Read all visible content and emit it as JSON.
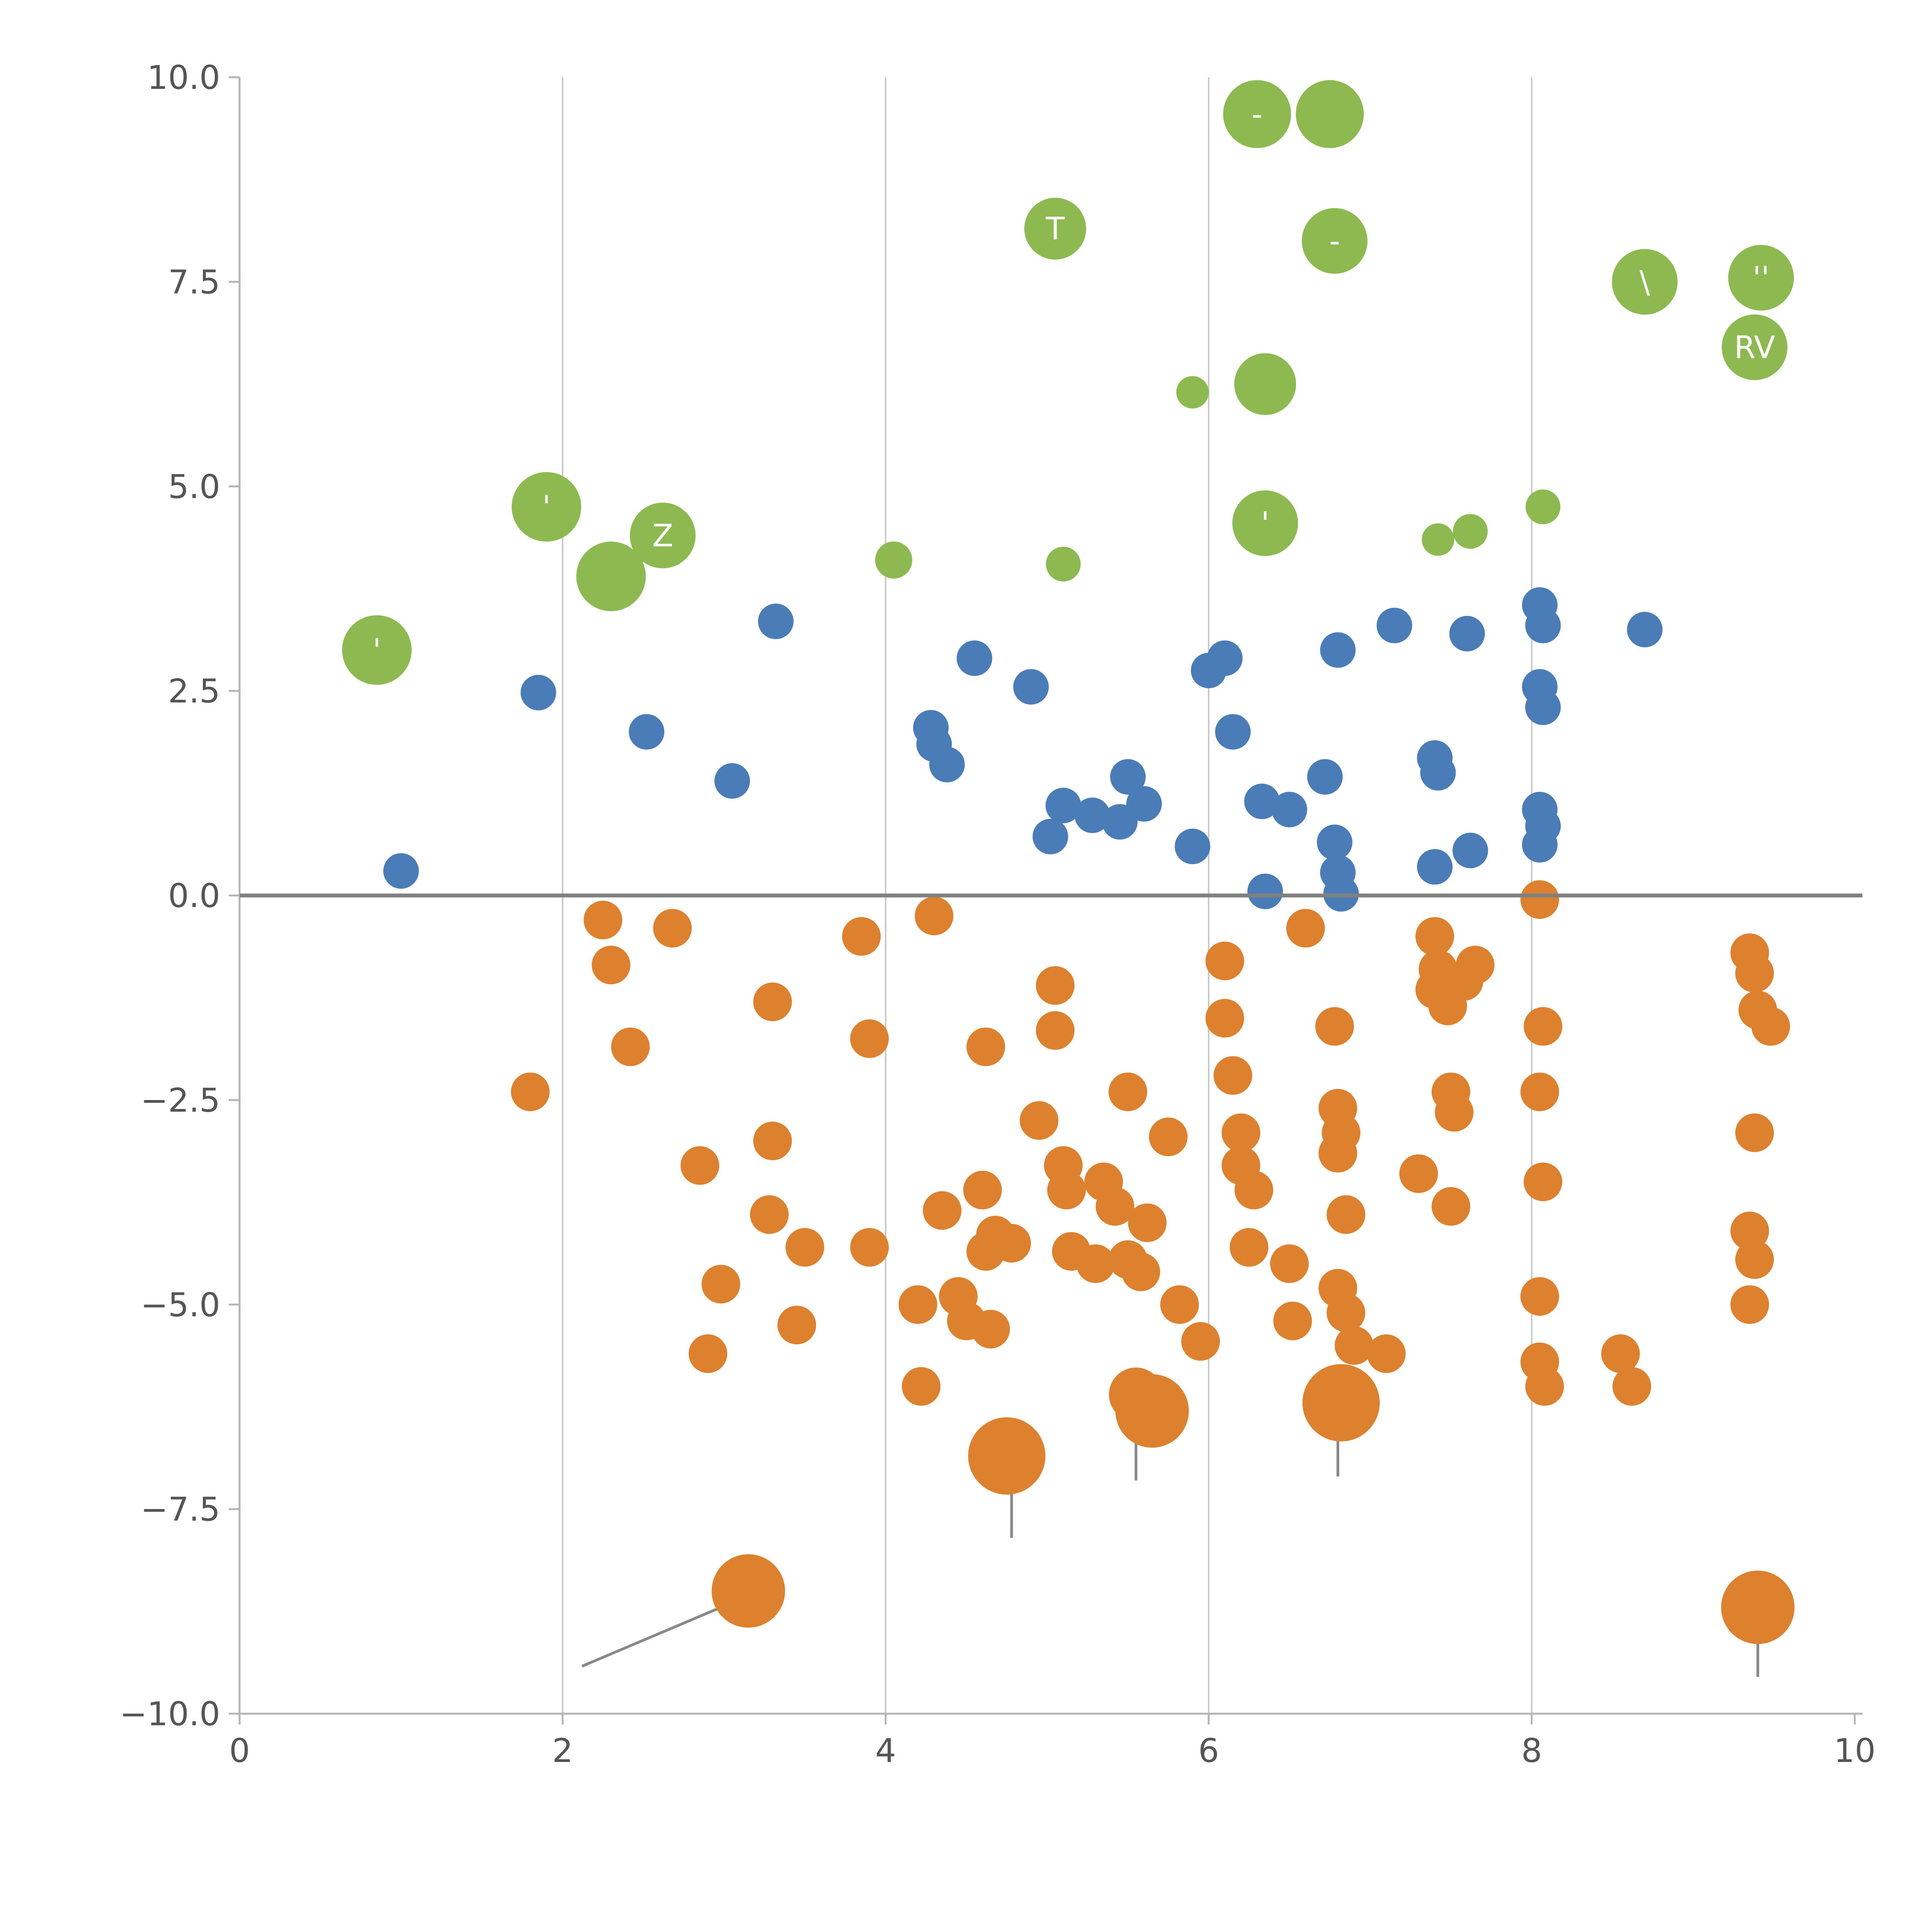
{
  "figure": {
    "background": "#ffffff"
  },
  "chart_data": {
    "type": "scatter",
    "title": "",
    "xlabel": "",
    "ylabel": "",
    "xlim": [
      0,
      10
    ],
    "ylim": [
      -10,
      10
    ],
    "grid": "vertical-only",
    "legend": "none",
    "x_tick_values": [
      0,
      2,
      4,
      6,
      8,
      10
    ],
    "x_tick_labels": [
      "0",
      "2",
      "4",
      "6",
      "8",
      "10"
    ],
    "y_tick_values": [
      10,
      7.5,
      5,
      2.5,
      0,
      -2.5,
      -5,
      -7.5,
      -10
    ],
    "y_tick_labels": [
      "10.0",
      "7.5",
      "5.0",
      "2.5",
      "0.0",
      "−2.5",
      "−5.0",
      "−7.5",
      "−10.0"
    ],
    "gridline_x_values": [
      2,
      4,
      6,
      8
    ],
    "gridline_color": "#c9c9c9",
    "zero_line": {
      "y": 0,
      "color": "#808080",
      "width": 10
    },
    "axis_color": "#b5b5b5",
    "tick_label_color": "#555555",
    "stem_color": "#888888",
    "series": [
      {
        "name": "green",
        "color": "#8cba51",
        "default_r": 87,
        "points": [
          [
            0.85,
            3.0,
            90,
            "'"
          ],
          [
            1.9,
            4.75,
            90,
            "'"
          ],
          [
            2.3,
            3.9,
            90
          ],
          [
            2.62,
            4.4,
            85,
            "Z"
          ],
          [
            4.05,
            4.1,
            48
          ],
          [
            5.05,
            8.15,
            80,
            "T"
          ],
          [
            5.1,
            4.05,
            45
          ],
          [
            5.9,
            6.15,
            42
          ],
          [
            6.3,
            9.55,
            88,
            "-"
          ],
          [
            6.75,
            9.55,
            88
          ],
          [
            6.78,
            8.0,
            85,
            "-"
          ],
          [
            6.35,
            6.25,
            80
          ],
          [
            6.35,
            4.55,
            85,
            "'"
          ],
          [
            7.42,
            4.35,
            42
          ],
          [
            7.62,
            4.45,
            45
          ],
          [
            8.07,
            4.75,
            45
          ],
          [
            8.7,
            7.5,
            85,
            "\\"
          ],
          [
            9.42,
            7.55,
            85,
            "''"
          ],
          [
            9.38,
            6.7,
            85,
            "RV"
          ]
        ]
      },
      {
        "name": "blue",
        "color": "#4a7db8",
        "default_r": 46,
        "points": [
          [
            1.0,
            0.3
          ],
          [
            1.85,
            2.48
          ],
          [
            2.52,
            2.0
          ],
          [
            3.05,
            1.4
          ],
          [
            3.32,
            3.35
          ],
          [
            4.28,
            2.05
          ],
          [
            4.3,
            1.85
          ],
          [
            4.38,
            1.6
          ],
          [
            4.55,
            2.9
          ],
          [
            4.9,
            2.55
          ],
          [
            5.02,
            0.72
          ],
          [
            5.1,
            1.1
          ],
          [
            5.28,
            0.98
          ],
          [
            5.45,
            0.9
          ],
          [
            5.5,
            1.45
          ],
          [
            5.6,
            1.12
          ],
          [
            5.9,
            0.6
          ],
          [
            6.0,
            2.75
          ],
          [
            6.1,
            2.9
          ],
          [
            6.15,
            2.0
          ],
          [
            6.33,
            1.15
          ],
          [
            6.5,
            1.05
          ],
          [
            6.35,
            0.05
          ],
          [
            6.72,
            1.45
          ],
          [
            6.8,
            3.0
          ],
          [
            6.78,
            0.65
          ],
          [
            6.8,
            0.28
          ],
          [
            6.82,
            0.02
          ],
          [
            7.15,
            3.3
          ],
          [
            7.4,
            1.68
          ],
          [
            7.42,
            1.5
          ],
          [
            7.4,
            0.35
          ],
          [
            7.6,
            3.2
          ],
          [
            7.62,
            0.55
          ],
          [
            8.05,
            3.55
          ],
          [
            8.07,
            3.3
          ],
          [
            8.05,
            2.55
          ],
          [
            8.07,
            2.3
          ],
          [
            8.05,
            1.05
          ],
          [
            8.07,
            0.85
          ],
          [
            8.05,
            0.62
          ],
          [
            8.7,
            3.25
          ]
        ]
      },
      {
        "name": "orange",
        "color": "#dd812e",
        "default_r": 50,
        "points": [
          [
            2.25,
            -0.3
          ],
          [
            2.3,
            -0.85
          ],
          [
            2.42,
            -1.85
          ],
          [
            1.8,
            -2.4
          ],
          [
            2.68,
            -0.4
          ],
          [
            2.85,
            -3.3
          ],
          [
            2.98,
            -4.75
          ],
          [
            2.9,
            -5.6
          ],
          [
            3.3,
            -1.3
          ],
          [
            3.3,
            -3.0
          ],
          [
            3.28,
            -3.9
          ],
          [
            3.45,
            -5.25
          ],
          [
            3.5,
            -4.3
          ],
          [
            3.85,
            -0.5
          ],
          [
            3.9,
            -1.75
          ],
          [
            3.9,
            -4.3
          ],
          [
            4.2,
            -5.0
          ],
          [
            4.22,
            -6.0
          ],
          [
            4.3,
            -0.25
          ],
          [
            4.35,
            -3.85
          ],
          [
            4.45,
            -4.9
          ],
          [
            4.5,
            -5.2
          ],
          [
            4.6,
            -3.6
          ],
          [
            4.62,
            -4.35
          ],
          [
            4.65,
            -5.3
          ],
          [
            4.68,
            -4.15
          ],
          [
            4.78,
            -4.25
          ],
          [
            4.75,
            -6.85,
            100
          ],
          [
            4.62,
            -1.85
          ],
          [
            5.05,
            -1.1
          ],
          [
            5.05,
            -1.65
          ],
          [
            4.95,
            -2.75
          ],
          [
            5.1,
            -3.3
          ],
          [
            5.12,
            -3.6
          ],
          [
            5.15,
            -4.35
          ],
          [
            5.3,
            -4.5
          ],
          [
            5.35,
            -3.5
          ],
          [
            5.42,
            -3.8
          ],
          [
            5.5,
            -4.45
          ],
          [
            5.58,
            -4.6
          ],
          [
            5.5,
            -2.4
          ],
          [
            5.62,
            -4.0
          ],
          [
            5.75,
            -2.95
          ],
          [
            5.55,
            -6.1,
            70
          ],
          [
            5.65,
            -6.3,
            95
          ],
          [
            5.82,
            -5.0
          ],
          [
            5.95,
            -5.45
          ],
          [
            6.1,
            -0.8
          ],
          [
            6.1,
            -1.5
          ],
          [
            6.15,
            -2.2
          ],
          [
            6.2,
            -2.9
          ],
          [
            6.2,
            -3.3
          ],
          [
            6.28,
            -3.6
          ],
          [
            6.25,
            -4.3
          ],
          [
            6.5,
            -4.5
          ],
          [
            6.52,
            -5.2
          ],
          [
            6.6,
            -0.4
          ],
          [
            6.78,
            -1.6
          ],
          [
            6.8,
            -2.6
          ],
          [
            6.82,
            -2.9
          ],
          [
            6.8,
            -3.15
          ],
          [
            6.85,
            -3.9
          ],
          [
            6.8,
            -4.8
          ],
          [
            6.85,
            -5.1
          ],
          [
            6.9,
            -5.5
          ],
          [
            6.82,
            -6.2,
            100
          ],
          [
            7.1,
            -5.6
          ],
          [
            7.3,
            -3.4
          ],
          [
            7.4,
            -0.5
          ],
          [
            7.42,
            -0.9
          ],
          [
            7.4,
            -1.15
          ],
          [
            7.48,
            -1.35
          ],
          [
            7.5,
            -2.4
          ],
          [
            7.52,
            -2.65
          ],
          [
            7.58,
            -1.05
          ],
          [
            7.65,
            -0.85
          ],
          [
            7.5,
            -3.8
          ],
          [
            8.05,
            -0.05
          ],
          [
            8.07,
            -1.6
          ],
          [
            8.05,
            -2.4
          ],
          [
            8.07,
            -3.5
          ],
          [
            8.05,
            -4.9
          ],
          [
            8.05,
            -5.7
          ],
          [
            8.08,
            -6.0
          ],
          [
            8.55,
            -5.6
          ],
          [
            8.62,
            -6.0
          ],
          [
            9.35,
            -0.7
          ],
          [
            9.38,
            -0.95
          ],
          [
            9.4,
            -1.4
          ],
          [
            9.48,
            -1.6
          ],
          [
            9.38,
            -2.9
          ],
          [
            9.35,
            -4.1
          ],
          [
            9.38,
            -4.45
          ],
          [
            9.35,
            -5.0
          ],
          [
            9.4,
            -8.7,
            95
          ],
          [
            3.15,
            -8.5,
            95
          ]
        ]
      }
    ],
    "stems": [
      {
        "x1": 4.78,
        "y1": -7.0,
        "x2": 4.78,
        "y2": -7.85
      },
      {
        "x1": 5.55,
        "y1": -6.5,
        "x2": 5.55,
        "y2": -7.15
      },
      {
        "x1": 6.8,
        "y1": -6.4,
        "x2": 6.8,
        "y2": -7.1
      },
      {
        "x1": 9.4,
        "y1": -8.85,
        "x2": 9.4,
        "y2": -9.55
      },
      {
        "x1": 3.1,
        "y1": -8.6,
        "x2": 2.12,
        "y2": -9.42
      }
    ]
  }
}
